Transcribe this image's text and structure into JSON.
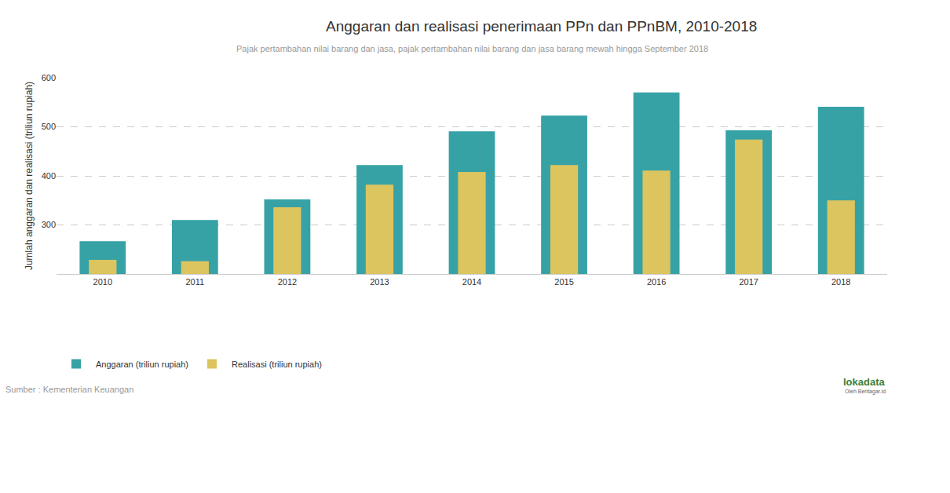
{
  "chart_data": {
    "type": "bar",
    "title": "Anggaran dan realisasi penerimaan PPn dan PPnBM, 2010-2018",
    "subtitle": "Pajak pertambahan nilai barang dan jasa, pajak pertambahan nilai barang dan jasa barang mewah hingga September 2018",
    "y_label": "Jumlah anggaran dan realisasi (triliun rupiah)",
    "categories": [
      "2010",
      "2011",
      "2012",
      "2013",
      "2014",
      "2015",
      "2016",
      "2017",
      "2018"
    ],
    "series": [
      {
        "name": "Anggaran (triliun rupiah)",
        "color": "#36a2a6",
        "values": [
          267,
          310,
          352,
          422,
          491,
          523,
          570,
          493,
          541
        ]
      },
      {
        "name": "Realisasi (triliun rupiah)",
        "color": "#dcc45e",
        "values": [
          229,
          226,
          336,
          382,
          408,
          422,
          411,
          474,
          350
        ]
      }
    ],
    "ylim": [
      200,
      600
    ],
    "yticks": [
      300,
      400,
      500,
      600
    ],
    "grid": true,
    "legend": "bottom left",
    "source": "Sumber : Kementerian Keuangan",
    "annotations": [
      "lokadata",
      "Oleh Beritagar.id"
    ]
  }
}
